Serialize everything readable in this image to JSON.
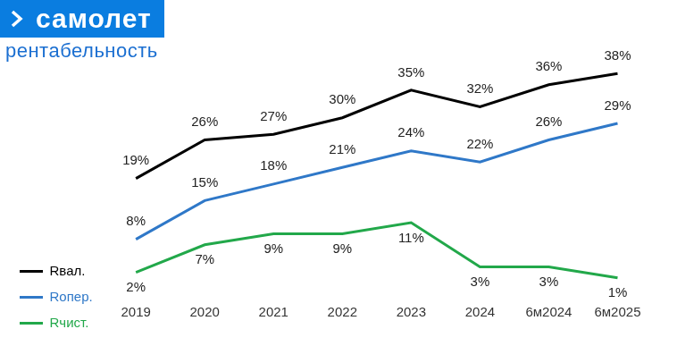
{
  "chart_data": {
    "type": "line",
    "title": "самолет",
    "subtitle": "рентабельность",
    "categories": [
      "2019",
      "2020",
      "2021",
      "2022",
      "2023",
      "2024",
      "6м2024",
      "6м2025"
    ],
    "series": [
      {
        "name": "Rвал.",
        "color": "#000000",
        "values": [
          19,
          26,
          27,
          30,
          35,
          32,
          36,
          38
        ],
        "value_labels": [
          "19%",
          "26%",
          "27%",
          "30%",
          "35%",
          "32%",
          "36%",
          "38%"
        ]
      },
      {
        "name": "Rопер.",
        "color": "#2f78c8",
        "values": [
          8,
          15,
          18,
          21,
          24,
          22,
          26,
          29
        ],
        "value_labels": [
          "8%",
          "15%",
          "18%",
          "21%",
          "24%",
          "22%",
          "26%",
          "29%"
        ]
      },
      {
        "name": "Rчист.",
        "color": "#22a84a",
        "values": [
          2,
          7,
          9,
          9,
          11,
          3,
          3,
          1
        ],
        "value_labels": [
          "2%",
          "7%",
          "9%",
          "9%",
          "11%",
          "3%",
          "3%",
          "1%"
        ]
      }
    ],
    "ylim": [
      0,
      40
    ],
    "grid": false,
    "legend": "left",
    "data_labels": true,
    "tick_labels": "x"
  }
}
